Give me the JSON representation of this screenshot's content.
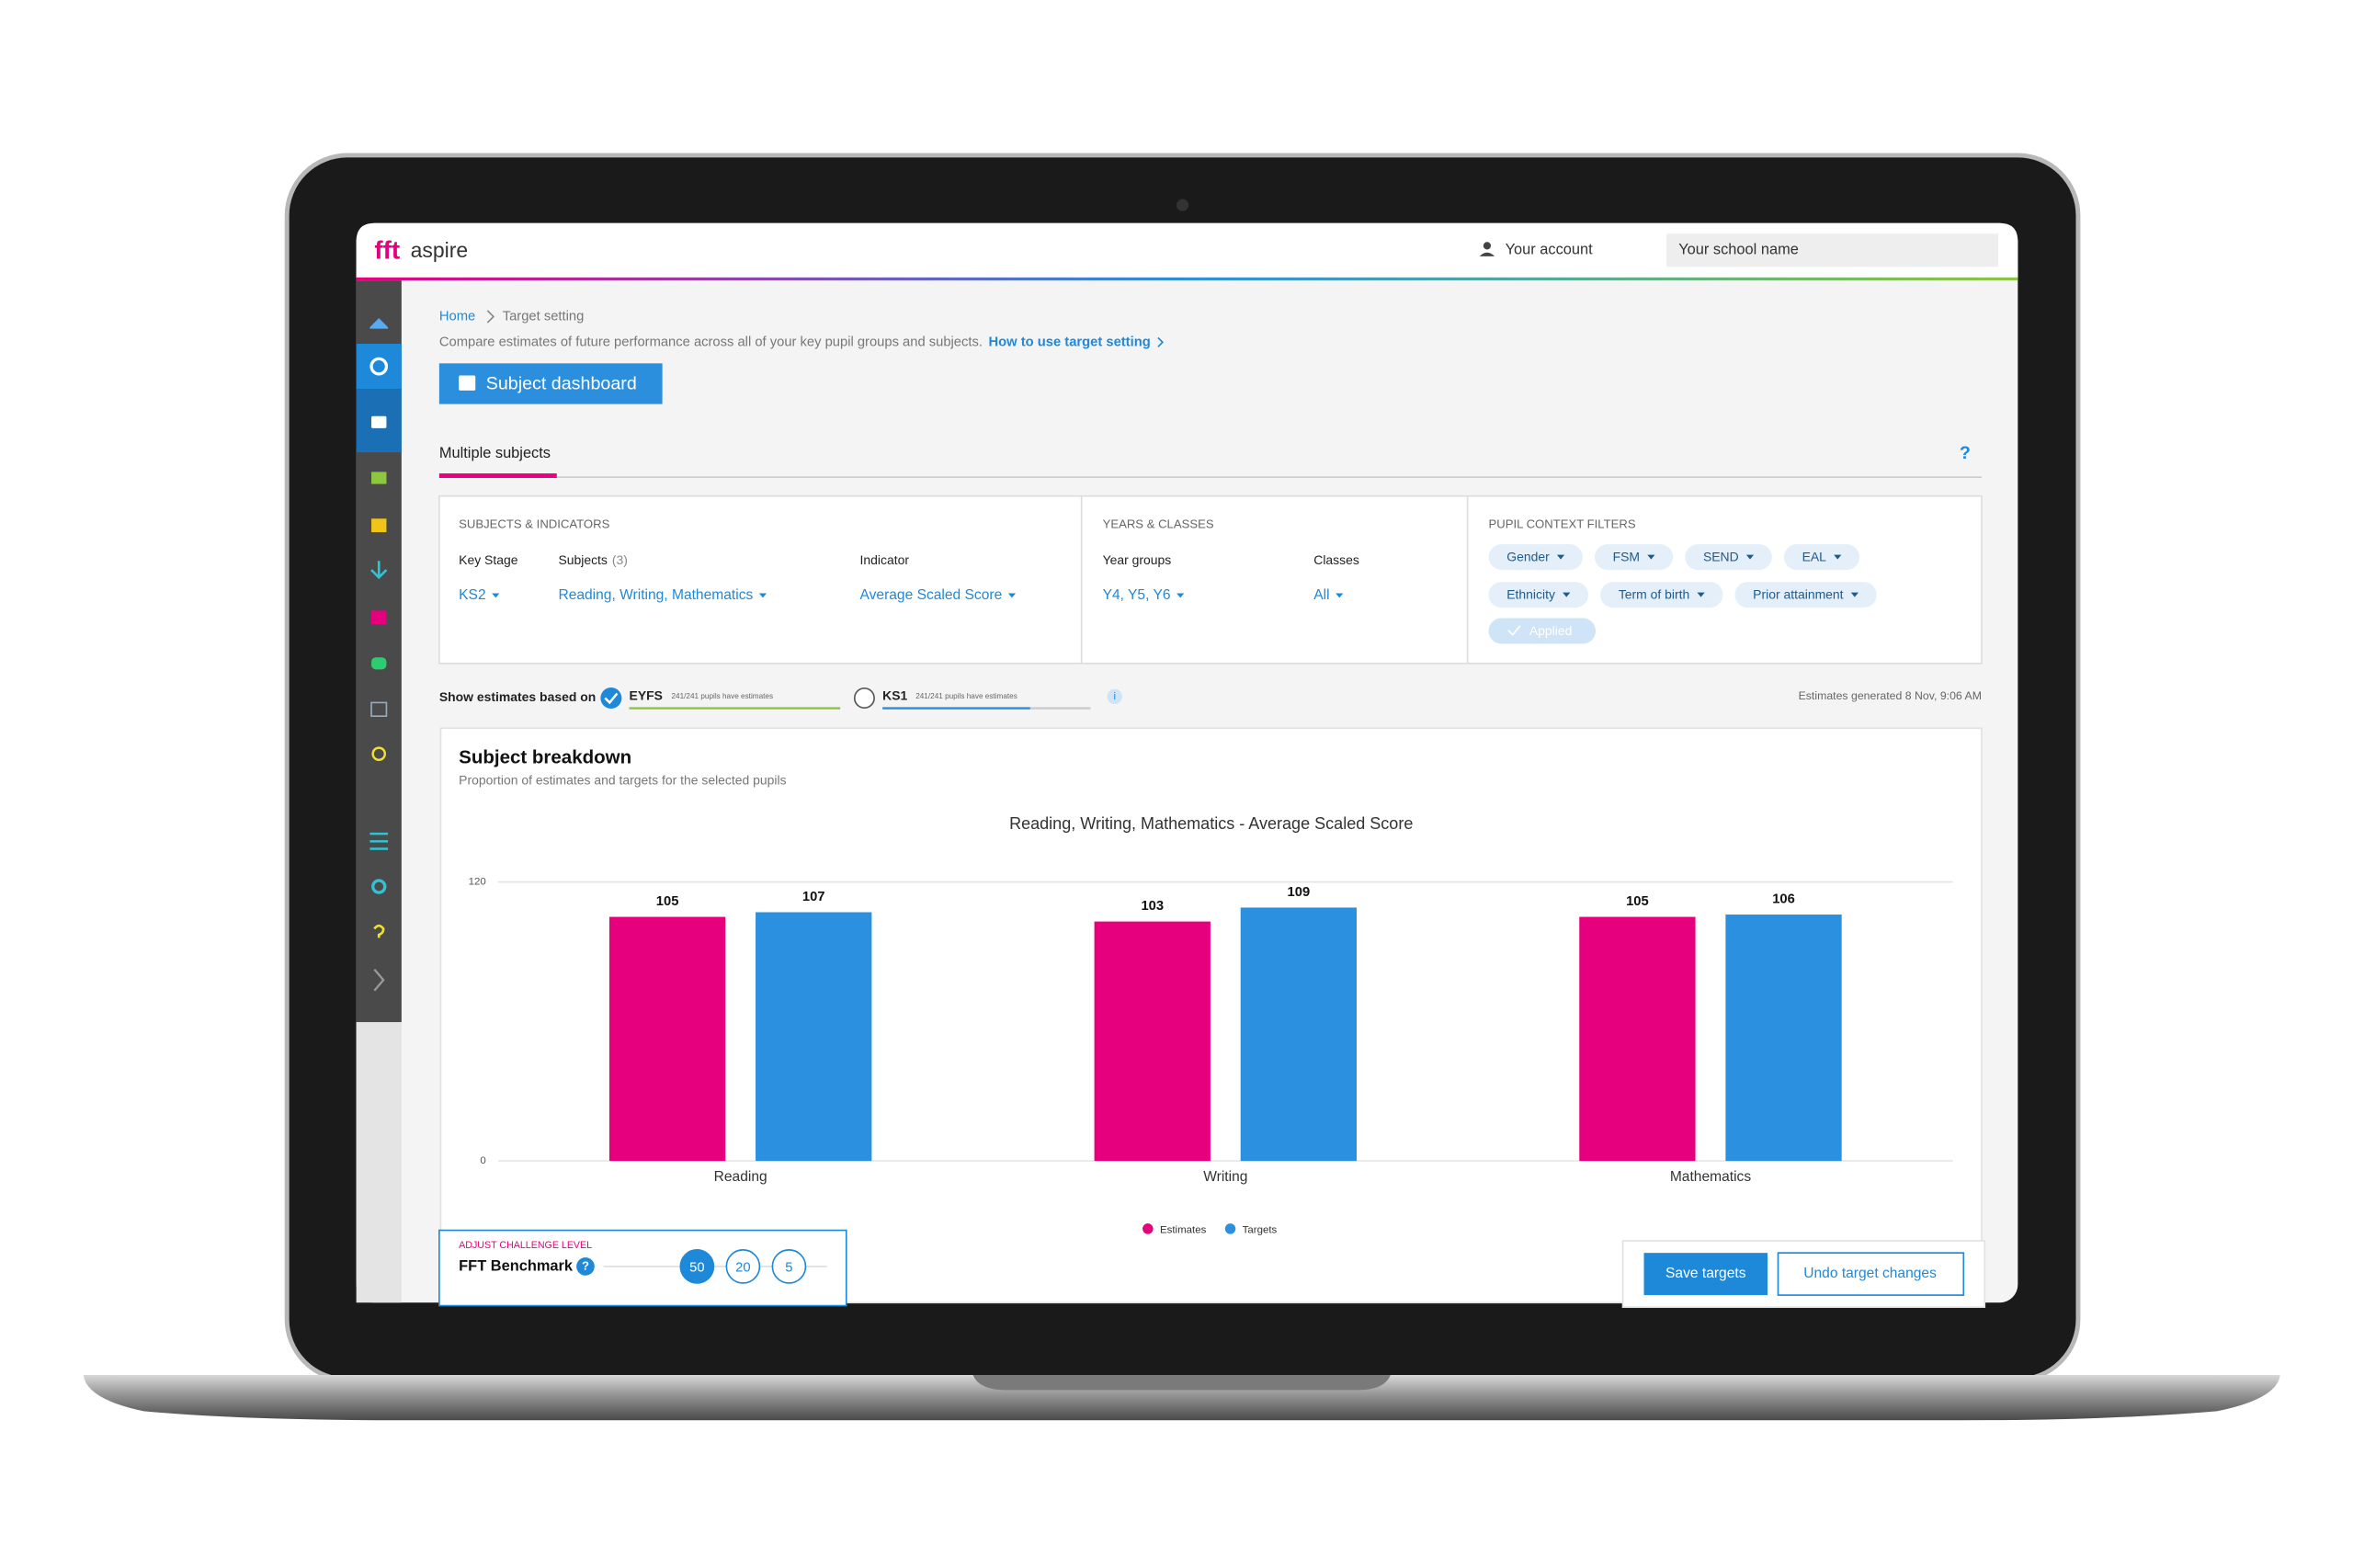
{
  "header": {
    "logo_mark": "fft",
    "logo_name": "aspire",
    "account": "Your account",
    "school": "Your school name"
  },
  "breadcrumb": [
    "Home",
    "Target setting"
  ],
  "description": "Compare estimates of future performance across all of your key pupil groups and subjects.",
  "help_link": "How to use target setting",
  "dashboard_button": "Subject dashboard",
  "tab": "Multiple subjects",
  "tab_help": "?",
  "filters": {
    "subjects_title": "SUBJECTS & INDICATORS",
    "key_stage_label": "Key Stage",
    "key_stage": "KS2",
    "subjects_label": "Subjects",
    "subjects_count": "(3)",
    "subjects": "Reading, Writing, Mathematics",
    "indicator_label": "Indicator",
    "indicator": "Average Scaled Score",
    "years_title": "YEARS & CLASSES",
    "year_groups_label": "Year groups",
    "year_groups": "Y4, Y5, Y6",
    "classes_label": "Classes",
    "classes": "All",
    "context_title": "PUPIL CONTEXT FILTERS",
    "chips": [
      "Gender",
      "FSM",
      "SEND",
      "EAL",
      "Ethnicity",
      "Term of birth",
      "Prior attainment"
    ],
    "applied": "Applied"
  },
  "estimates": {
    "label": "Show estimates based on",
    "options": [
      {
        "name": "EYFS",
        "note": "241/241 pupils have estimates"
      },
      {
        "name": "KS1",
        "note": "241/241 pupils have estimates"
      }
    ],
    "info": "i",
    "generated": "Estimates generated 8 Nov, 9:06 AM"
  },
  "card": {
    "title": "Subject breakdown",
    "subtitle": "Proportion of estimates and targets for the selected pupils"
  },
  "chart_data": {
    "type": "bar",
    "title": "Reading, Writing, Mathematics - Average Scaled Score",
    "categories": [
      "Reading",
      "Writing",
      "Mathematics"
    ],
    "series": [
      {
        "name": "Estimates",
        "color": "#e6007e",
        "values": [
          105,
          103,
          105
        ]
      },
      {
        "name": "Targets",
        "color": "#2b90df",
        "values": [
          107,
          109,
          106
        ]
      }
    ],
    "ylim": [
      0,
      120
    ],
    "yticks": [
      0,
      120
    ],
    "grid": true,
    "legend": "bottom"
  },
  "challenge": {
    "title": "ADJUST CHALLENGE LEVEL",
    "name": "FFT Benchmark",
    "help": "?",
    "levels": [
      50,
      20,
      5
    ]
  },
  "actions": {
    "save": "Save targets",
    "undo": "Undo target changes"
  }
}
